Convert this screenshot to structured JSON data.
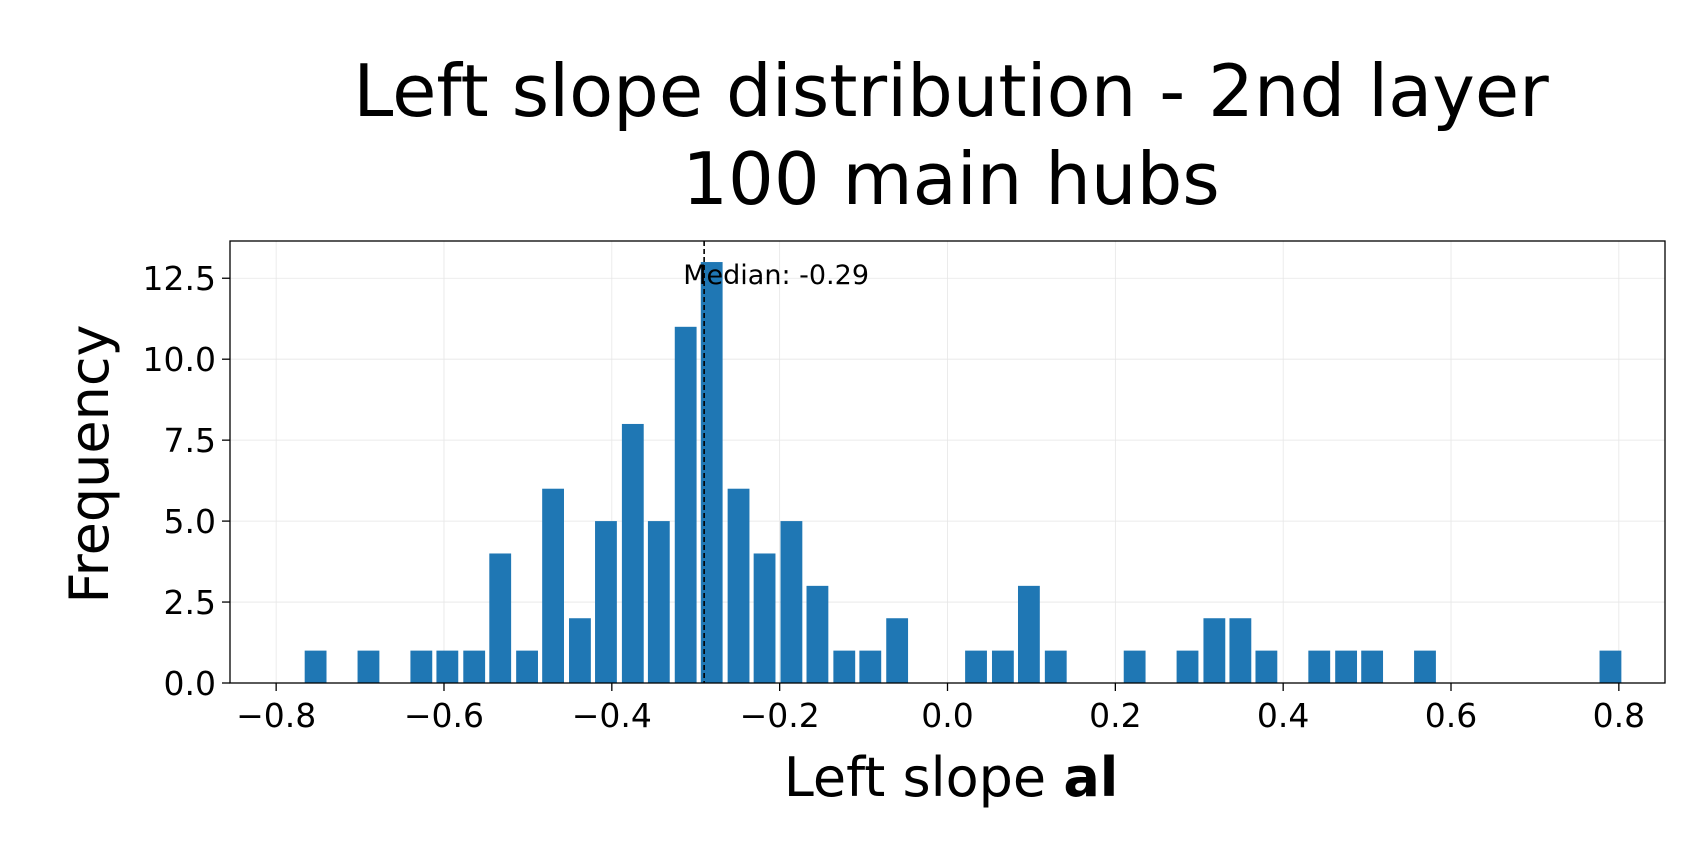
{
  "chart_data": {
    "type": "bar",
    "title_line1": "Left slope distribution - 2nd layer",
    "title_line2": "100 main hubs",
    "xlabel_prefix": "Left slope ",
    "xlabel_bold": "al",
    "ylabel": "Frequency",
    "xlim": [
      -0.855,
      0.855
    ],
    "ylim": [
      0,
      13.65
    ],
    "xticks": [
      -0.8,
      -0.6,
      -0.4,
      -0.2,
      0.0,
      0.2,
      0.4,
      0.6,
      0.8
    ],
    "xtick_labels": [
      "−0.8",
      "−0.6",
      "−0.4",
      "−0.2",
      "0.0",
      "0.2",
      "0.4",
      "0.6",
      "0.8"
    ],
    "yticks": [
      0.0,
      2.5,
      5.0,
      7.5,
      10.0,
      12.5
    ],
    "ytick_labels": [
      "0.0",
      "2.5",
      "5.0",
      "7.5",
      "10.0",
      "12.5"
    ],
    "bar_width": 0.026,
    "x": [
      -0.753,
      -0.69,
      -0.627,
      -0.596,
      -0.564,
      -0.533,
      -0.501,
      -0.47,
      -0.438,
      -0.407,
      -0.375,
      -0.344,
      -0.312,
      -0.281,
      -0.249,
      -0.218,
      -0.186,
      -0.155,
      -0.123,
      -0.092,
      -0.06,
      0.034,
      0.066,
      0.097,
      0.129,
      0.223,
      0.286,
      0.318,
      0.349,
      0.38,
      0.443,
      0.475,
      0.506,
      0.569,
      0.79
    ],
    "values": [
      1,
      1,
      1,
      1,
      1,
      4,
      1,
      6,
      2,
      5,
      8,
      5,
      11,
      13,
      6,
      4,
      5,
      3,
      1,
      1,
      2,
      1,
      1,
      3,
      1,
      1,
      1,
      2,
      2,
      1,
      1,
      1,
      1,
      1,
      1
    ],
    "bar_color": "#1f77b4",
    "median": -0.29,
    "median_label": "Median: -0.29",
    "grid": true
  }
}
